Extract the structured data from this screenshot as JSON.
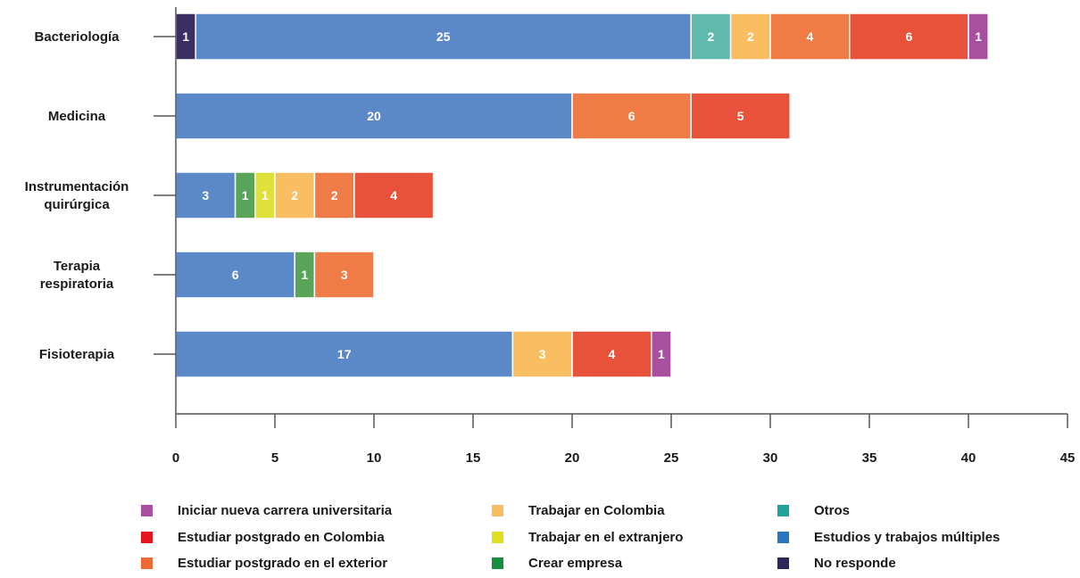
{
  "chart_data": {
    "type": "bar",
    "orientation": "horizontal",
    "stacked": true,
    "categories": [
      "Bacteriología",
      "Medicina",
      "Instrumentación quirúrgica",
      "Terapia respiratoria",
      "Fisioterapia"
    ],
    "category_lines": [
      [
        "Bacteriología"
      ],
      [
        "Medicina"
      ],
      [
        "Instrumentación",
        "quirúrgica"
      ],
      [
        "Terapia",
        "respiratoria"
      ],
      [
        "Fisioterapia"
      ]
    ],
    "series": [
      {
        "key": "no_responde",
        "name": "No responde",
        "color": "#3b2f63",
        "values": [
          1,
          0,
          0,
          0,
          0
        ]
      },
      {
        "key": "multiples",
        "name": "Estudios y trabajos múltiples",
        "color": "#5b89c7",
        "values": [
          25,
          20,
          3,
          6,
          17
        ]
      },
      {
        "key": "crear_empresa",
        "name": "Crear empresa",
        "color": "#5aa45a",
        "values": [
          0,
          0,
          1,
          1,
          0
        ]
      },
      {
        "key": "extranjero",
        "name": "Trabajar en el extranjero",
        "color": "#dfe03a",
        "values": [
          0,
          0,
          1,
          0,
          0
        ]
      },
      {
        "key": "otros",
        "name": "Otros",
        "color": "#5fb9ac",
        "values": [
          2,
          0,
          0,
          0,
          0
        ]
      },
      {
        "key": "colombia",
        "name": "Trabajar en Colombia",
        "color": "#f9be61",
        "values": [
          2,
          0,
          2,
          0,
          3
        ]
      },
      {
        "key": "post_exterior",
        "name": "Estudiar postgrado en el exterior",
        "color": "#ef7b47",
        "values": [
          4,
          6,
          2,
          3,
          0
        ]
      },
      {
        "key": "post_colombia",
        "name": "Estudiar postgrado en Colombia",
        "color": "#e8523b",
        "values": [
          6,
          5,
          4,
          0,
          4
        ]
      },
      {
        "key": "nueva_carrera",
        "name": "Iniciar nueva carrera universitaria",
        "color": "#a84fa0",
        "values": [
          1,
          0,
          0,
          0,
          1
        ]
      }
    ],
    "xlim": [
      0,
      45
    ],
    "xticks": [
      0,
      5,
      10,
      15,
      20,
      25,
      30,
      35,
      40,
      45
    ],
    "grid": false,
    "legend_position": "bottom"
  },
  "legend": [
    {
      "label": "Iniciar nueva carrera universitaria",
      "color": "#a84fa0"
    },
    {
      "label": "Trabajar en Colombia",
      "color": "#f9be61"
    },
    {
      "label": "Otros",
      "color": "#1fa398"
    },
    {
      "label": "Estudiar postgrado en Colombia",
      "color": "#e4151f"
    },
    {
      "label": "Trabajar en el extranjero",
      "color": "#e0df1f"
    },
    {
      "label": "Estudios y trabajos múltiples",
      "color": "#2a77c1"
    },
    {
      "label": "Estudiar postgrado en el exterior",
      "color": "#ee6a34"
    },
    {
      "label": "Crear empresa",
      "color": "#148f3e"
    },
    {
      "label": "No responde",
      "color": "#2f2559"
    }
  ]
}
